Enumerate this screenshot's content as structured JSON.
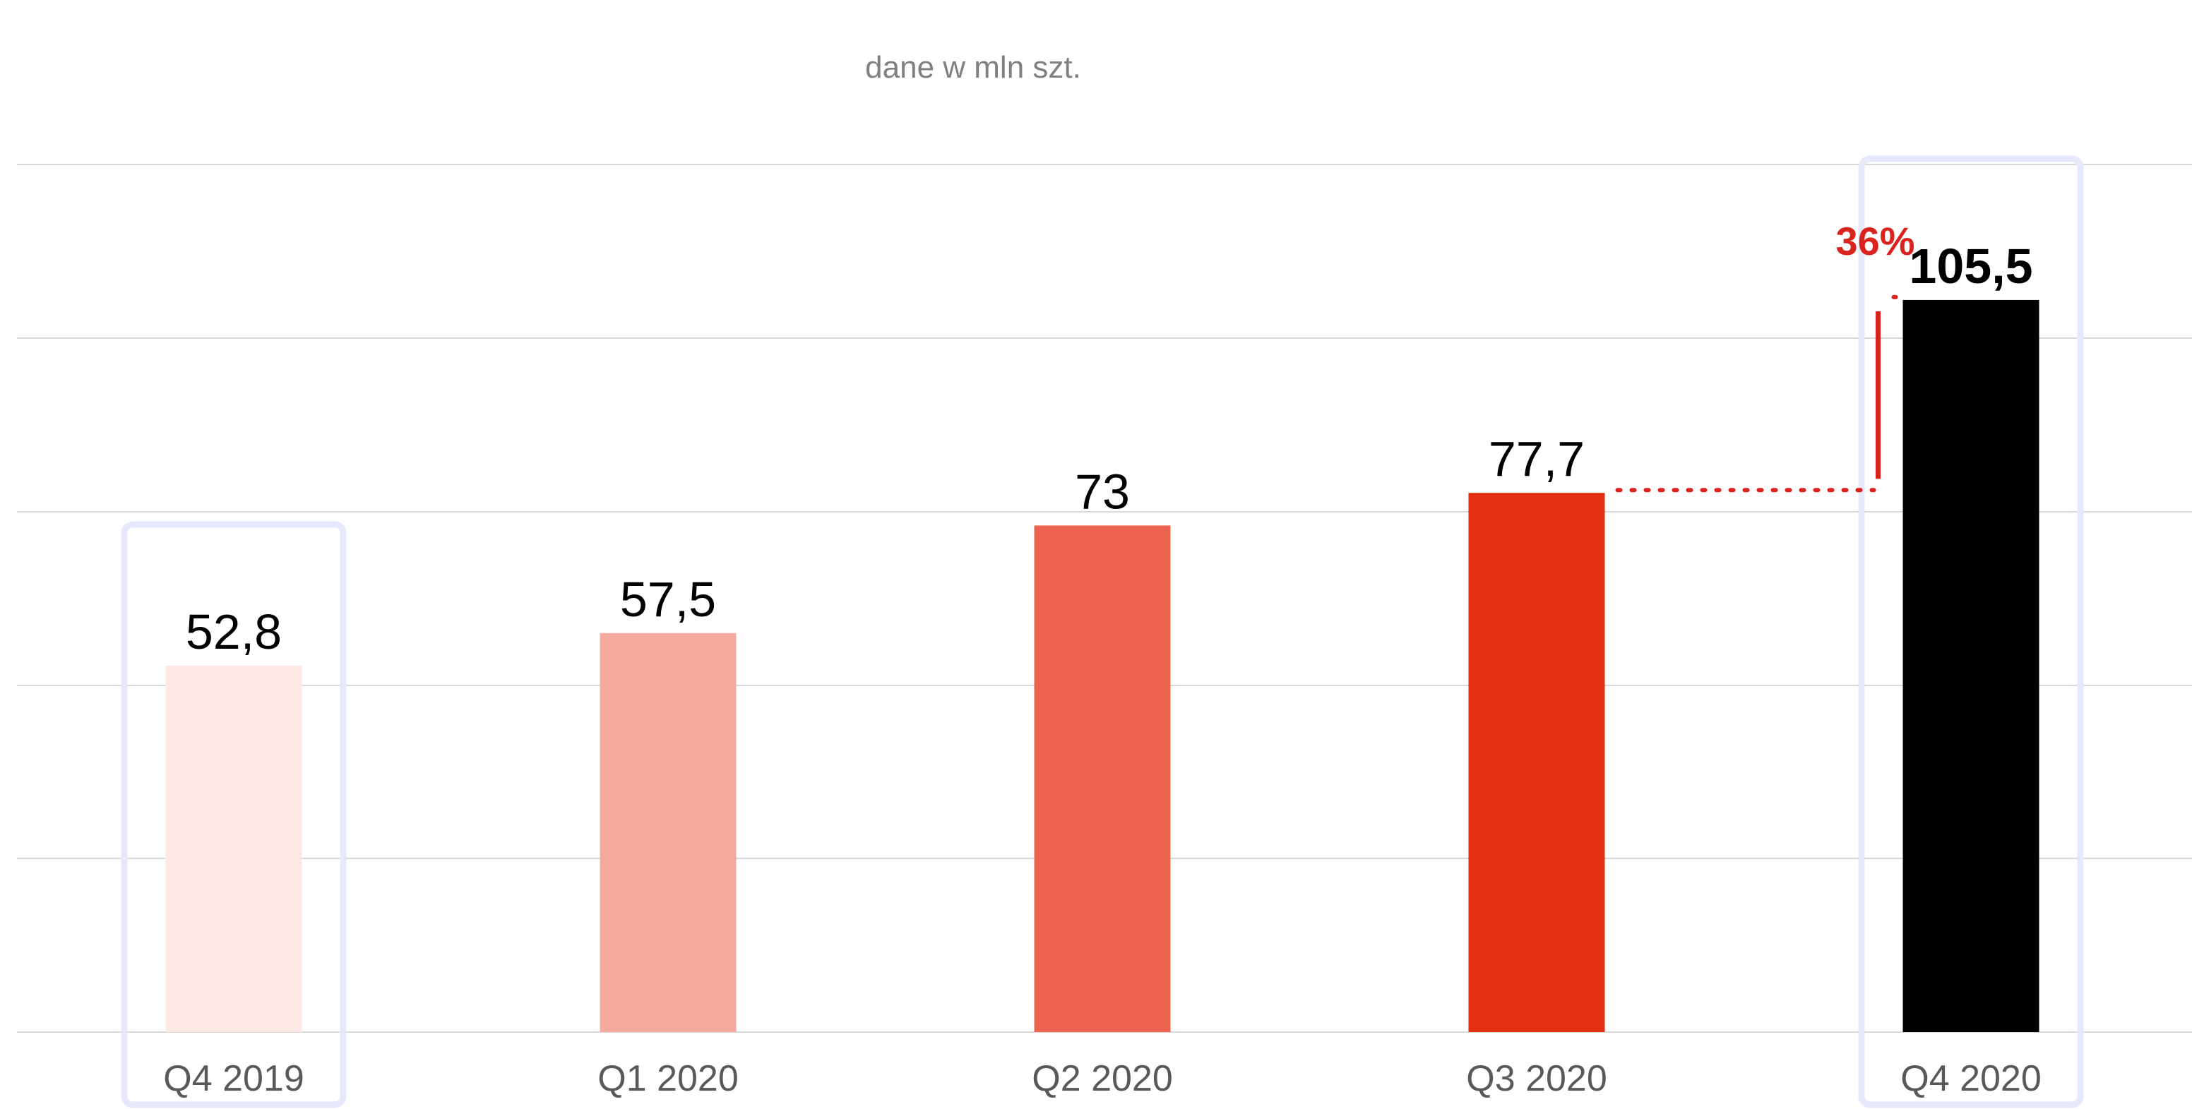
{
  "chart_data": {
    "type": "bar",
    "subtitle": "dane w mln szt.",
    "categories": [
      "Q4 2019",
      "Q1 2020",
      "Q2 2020",
      "Q3 2020",
      "Q4 2020"
    ],
    "values": [
      52.8,
      57.5,
      73,
      77.7,
      105.5
    ],
    "value_labels": [
      "52,8",
      "57,5",
      "73",
      "77,7",
      "105,5"
    ],
    "bar_colors": [
      "#fde8e5",
      "#f5aa9f",
      "#ec6450",
      "#e42f12",
      "#000000"
    ],
    "highlighted_categories": [
      "Q4 2019",
      "Q4 2020"
    ],
    "highlight_color": "#e6e9fb",
    "ylim": [
      0,
      125
    ],
    "grid": true,
    "growth_annotation": {
      "from": "Q3 2020",
      "to": "Q4 2020",
      "label": "36%",
      "color": "#d9231c"
    }
  }
}
